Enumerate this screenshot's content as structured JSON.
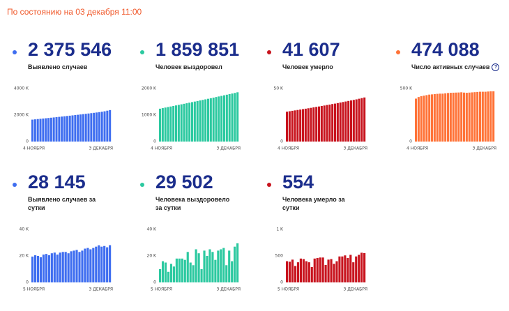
{
  "header": "По состоянию на 03 декабря 11:00",
  "chart_data": [
    {
      "type": "bar",
      "headline": "2 375 546",
      "label": "Выявлено случаев",
      "color": "#3f6ef0",
      "categories": [
        "4 НОЯБРЯ",
        null,
        null,
        null,
        null,
        null,
        null,
        null,
        null,
        null,
        null,
        null,
        null,
        null,
        null,
        null,
        null,
        null,
        null,
        null,
        null,
        null,
        null,
        null,
        null,
        null,
        null,
        null,
        null,
        "3 ДЕКАБРЯ"
      ],
      "values": [
        1655,
        1677,
        1698,
        1718,
        1738,
        1758,
        1779,
        1800,
        1821,
        1843,
        1864,
        1886,
        1908,
        1930,
        1953,
        1976,
        1999,
        2022,
        2046,
        2070,
        2094,
        2118,
        2143,
        2168,
        2194,
        2220,
        2250,
        2284,
        2330,
        2376
      ],
      "ylim": [
        0,
        4000
      ],
      "yticks": [
        0,
        {
          "value": 2000,
          "label": "2000 K"
        },
        {
          "value": 4000,
          "label": "4000 K"
        }
      ]
    },
    {
      "type": "bar",
      "headline": "1 859 851",
      "label": "Человек выздоровел",
      "color": "#2cc9a0",
      "categories": [
        "4 НОЯБРЯ",
        null,
        null,
        null,
        null,
        null,
        null,
        null,
        null,
        null,
        null,
        null,
        null,
        null,
        null,
        null,
        null,
        null,
        null,
        null,
        null,
        null,
        null,
        null,
        null,
        null,
        null,
        null,
        null,
        "3 ДЕКАБРЯ"
      ],
      "values": [
        1240,
        1262,
        1283,
        1303,
        1323,
        1343,
        1364,
        1384,
        1405,
        1425,
        1446,
        1467,
        1488,
        1509,
        1530,
        1551,
        1572,
        1593,
        1614,
        1636,
        1658,
        1680,
        1702,
        1724,
        1746,
        1768,
        1790,
        1812,
        1835,
        1860
      ],
      "ylim": [
        0,
        2000
      ],
      "yticks": [
        0,
        {
          "value": 1000,
          "label": "1000 K"
        },
        {
          "value": 2000,
          "label": "2000 K"
        }
      ]
    },
    {
      "type": "bar",
      "headline": "41 607",
      "label": "Человек умерло",
      "color": "#c8141e",
      "categories": [
        "4 НОЯБРЯ",
        null,
        null,
        null,
        null,
        null,
        null,
        null,
        null,
        null,
        null,
        null,
        null,
        null,
        null,
        null,
        null,
        null,
        null,
        null,
        null,
        null,
        null,
        null,
        null,
        null,
        null,
        null,
        null,
        "3 ДЕКАБРЯ"
      ],
      "values": [
        28.2,
        28.6,
        29.0,
        29.4,
        29.8,
        30.2,
        30.6,
        31.0,
        31.4,
        31.8,
        32.3,
        32.7,
        33.1,
        33.6,
        34.0,
        34.5,
        34.9,
        35.4,
        35.8,
        36.3,
        36.8,
        37.3,
        37.8,
        38.3,
        38.8,
        39.3,
        39.8,
        40.4,
        41.0,
        41.6
      ],
      "ylim": [
        0,
        50
      ],
      "yticks": [
        0,
        {
          "value": 50,
          "label": "50 K"
        }
      ]
    },
    {
      "type": "bar",
      "headline": "474 088",
      "label": "Число активных случаев",
      "color": "#ff7338",
      "categories": [
        "4 НОЯБРЯ",
        null,
        null,
        null,
        null,
        null,
        null,
        null,
        null,
        null,
        null,
        null,
        null,
        null,
        null,
        null,
        null,
        null,
        null,
        null,
        null,
        null,
        null,
        null,
        null,
        null,
        null,
        null,
        null,
        "3 ДЕКАБРЯ"
      ],
      "values": [
        405,
        420,
        428,
        433,
        438,
        443,
        445,
        448,
        450,
        452,
        452,
        455,
        458,
        460,
        461,
        462,
        463,
        465,
        462,
        460,
        462,
        464,
        466,
        468,
        470,
        470,
        470,
        472,
        474,
        474
      ],
      "ylim": [
        0,
        500
      ],
      "yticks": [
        0,
        {
          "value": 500,
          "label": "500 K"
        }
      ]
    },
    {
      "type": "bar",
      "headline": "28 145",
      "label": "Выявлено случаев за сутки",
      "color": "#3f6ef0",
      "categories": [
        "5 НОЯБРЯ",
        null,
        null,
        null,
        null,
        null,
        null,
        null,
        null,
        null,
        null,
        null,
        null,
        null,
        null,
        null,
        null,
        null,
        null,
        null,
        null,
        null,
        null,
        null,
        null,
        null,
        null,
        null,
        "3 ДЕКАБРЯ"
      ],
      "values": [
        19.5,
        20.5,
        20,
        19,
        21,
        21.5,
        20.5,
        22,
        22.5,
        21,
        22.5,
        23,
        23,
        22,
        23.5,
        24,
        24.5,
        23,
        24,
        25.5,
        26,
        25,
        26,
        27,
        28,
        27,
        27.5,
        26.5,
        28.1
      ],
      "ylim": [
        0,
        40
      ],
      "yticks": [
        0,
        {
          "value": 20,
          "label": "20 K"
        },
        {
          "value": 40,
          "label": "40 K"
        }
      ]
    },
    {
      "type": "bar",
      "headline": "29 502",
      "label": "Человека выздоровело за сутки",
      "color": "#2cc9a0",
      "categories": [
        "5 НОЯБРЯ",
        null,
        null,
        null,
        null,
        null,
        null,
        null,
        null,
        null,
        null,
        null,
        null,
        null,
        null,
        null,
        null,
        null,
        null,
        null,
        null,
        null,
        null,
        null,
        null,
        null,
        null,
        null,
        "3 ДЕКАБРЯ"
      ],
      "values": [
        10,
        16,
        15,
        8,
        14,
        12,
        18,
        18,
        18,
        17,
        23,
        15,
        13,
        25,
        22,
        10,
        24,
        20,
        25,
        23,
        17,
        24,
        25,
        26,
        13,
        24,
        16,
        27,
        29.5
      ],
      "ylim": [
        0,
        40
      ],
      "yticks": [
        0,
        {
          "value": 20,
          "label": "20 K"
        },
        {
          "value": 40,
          "label": "40 K"
        }
      ]
    },
    {
      "type": "bar",
      "headline": "554",
      "label": "Человека умерло за сутки",
      "color": "#c8141e",
      "categories": [
        "5 НОЯБРЯ",
        null,
        null,
        null,
        null,
        null,
        null,
        null,
        null,
        null,
        null,
        null,
        null,
        null,
        null,
        null,
        null,
        null,
        null,
        null,
        null,
        null,
        null,
        null,
        null,
        null,
        null,
        null,
        "3 ДЕКАБРЯ"
      ],
      "values": [
        400,
        390,
        430,
        310,
        380,
        450,
        440,
        400,
        380,
        290,
        450,
        460,
        470,
        470,
        330,
        430,
        440,
        350,
        400,
        490,
        490,
        510,
        460,
        520,
        380,
        490,
        520,
        560,
        554
      ],
      "ylim": [
        0,
        1000
      ],
      "yticks": [
        0,
        500,
        {
          "value": 1000,
          "label": "1 K"
        }
      ]
    }
  ]
}
